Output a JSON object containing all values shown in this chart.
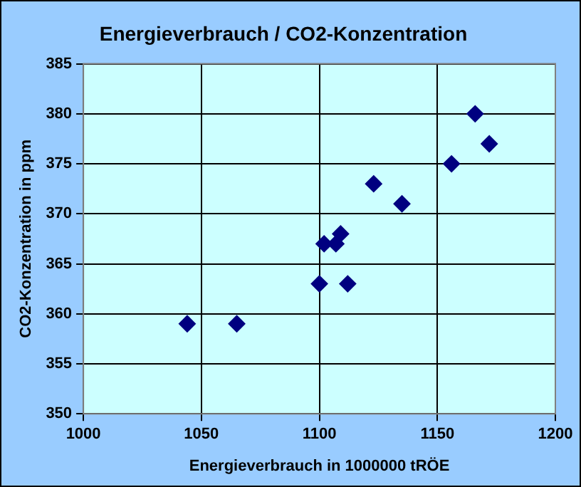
{
  "chart_data": {
    "type": "scatter",
    "title": "Energieverbrauch / CO2-Konzentration",
    "xlabel": "Energieverbrauch in 1000000 tRÖE",
    "ylabel": "CO2-Konzentration in ppm",
    "x": [
      1044,
      1065,
      1100,
      1102,
      1107,
      1109,
      1112,
      1123,
      1135,
      1156,
      1166,
      1172
    ],
    "series": [
      {
        "color": "#000080",
        "values": [
          359,
          359,
          363,
          367,
          367,
          368,
          363,
          373,
          371,
          375,
          380,
          377
        ]
      }
    ],
    "xlim": [
      1000,
      1200
    ],
    "xticks": [
      1000,
      1050,
      1100,
      1150,
      1200
    ],
    "ylim": [
      350,
      385
    ],
    "yticks": [
      350,
      355,
      360,
      365,
      370,
      375,
      380,
      385
    ],
    "grid": true,
    "legend": false,
    "marker": "diamond"
  }
}
